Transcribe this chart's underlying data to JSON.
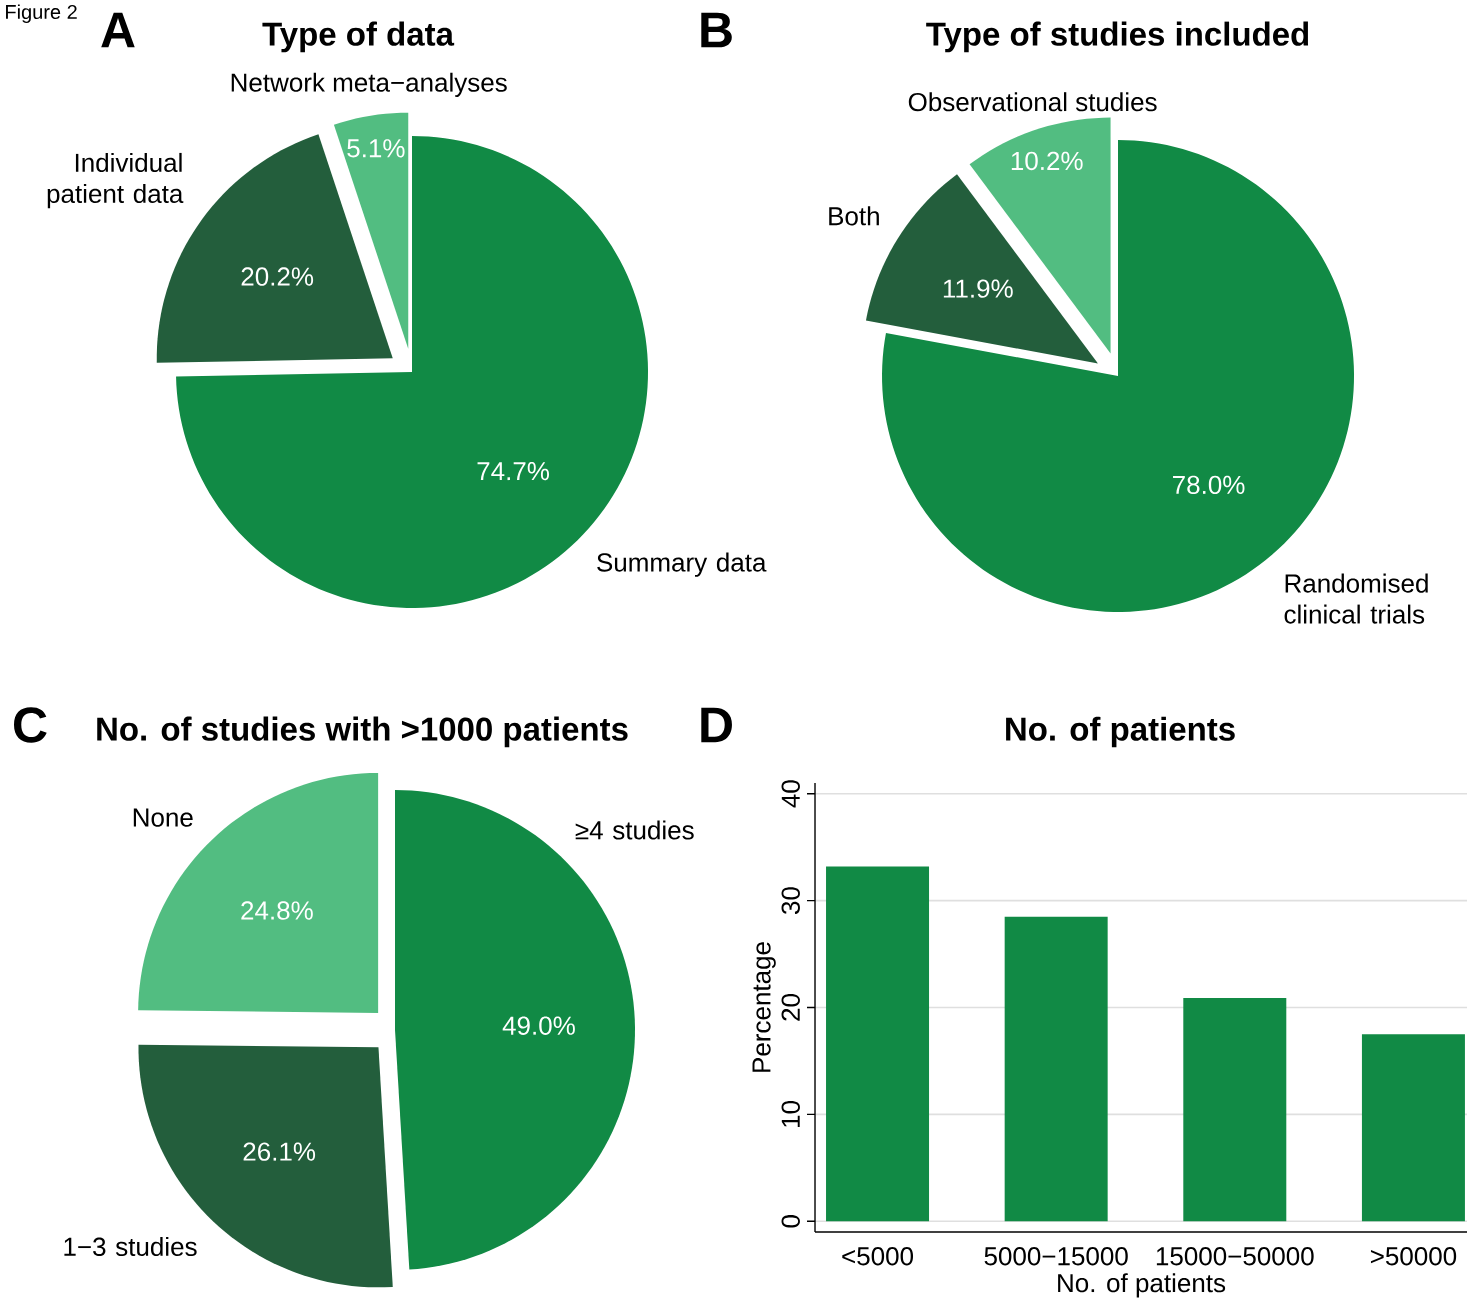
{
  "chart_data": [
    {
      "type": "pie",
      "title": "Type of data",
      "annotations": [
        "A",
        "Figure 2"
      ],
      "categories": [
        "Summary data",
        "Individual patient data",
        "Network meta−analyses"
      ],
      "values": [
        74.7,
        20.2,
        5.1
      ],
      "value_labels": [
        "74.7%",
        "20.2%",
        "5.1%"
      ],
      "colors": [
        "#118a45",
        "#235e3c",
        "#52bd81"
      ]
    },
    {
      "type": "pie",
      "title": "Type of studies included",
      "annotations": [
        "B"
      ],
      "categories": [
        "Randomised clinical trials",
        "Both",
        "Observational studies"
      ],
      "values": [
        78.0,
        11.9,
        10.2
      ],
      "value_labels": [
        "78.0%",
        "11.9%",
        "10.2%"
      ],
      "colors": [
        "#118a45",
        "#235e3c",
        "#52bd81"
      ]
    },
    {
      "type": "pie",
      "title": "No. of studies with >1000 patients",
      "annotations": [
        "C"
      ],
      "categories": [
        "≥4 studies",
        "1−3 studies",
        "None"
      ],
      "values": [
        49.0,
        26.1,
        24.8
      ],
      "value_labels": [
        "49.0%",
        "26.1%",
        "24.8%"
      ],
      "colors": [
        "#118a45",
        "#235e3c",
        "#52bd81"
      ]
    },
    {
      "type": "bar",
      "title": "No. of patients",
      "annotations": [
        "D"
      ],
      "xlabel": "No. of patients",
      "ylabel": "Percentage",
      "categories": [
        "<5000",
        "5000−15000",
        "15000−50000",
        ">50000"
      ],
      "values": [
        33.2,
        28.5,
        20.9,
        17.5
      ],
      "color": "#118a45",
      "ylim": [
        -1,
        41
      ],
      "yticks": [
        0,
        10,
        20,
        30,
        40
      ],
      "grid": "y"
    }
  ]
}
